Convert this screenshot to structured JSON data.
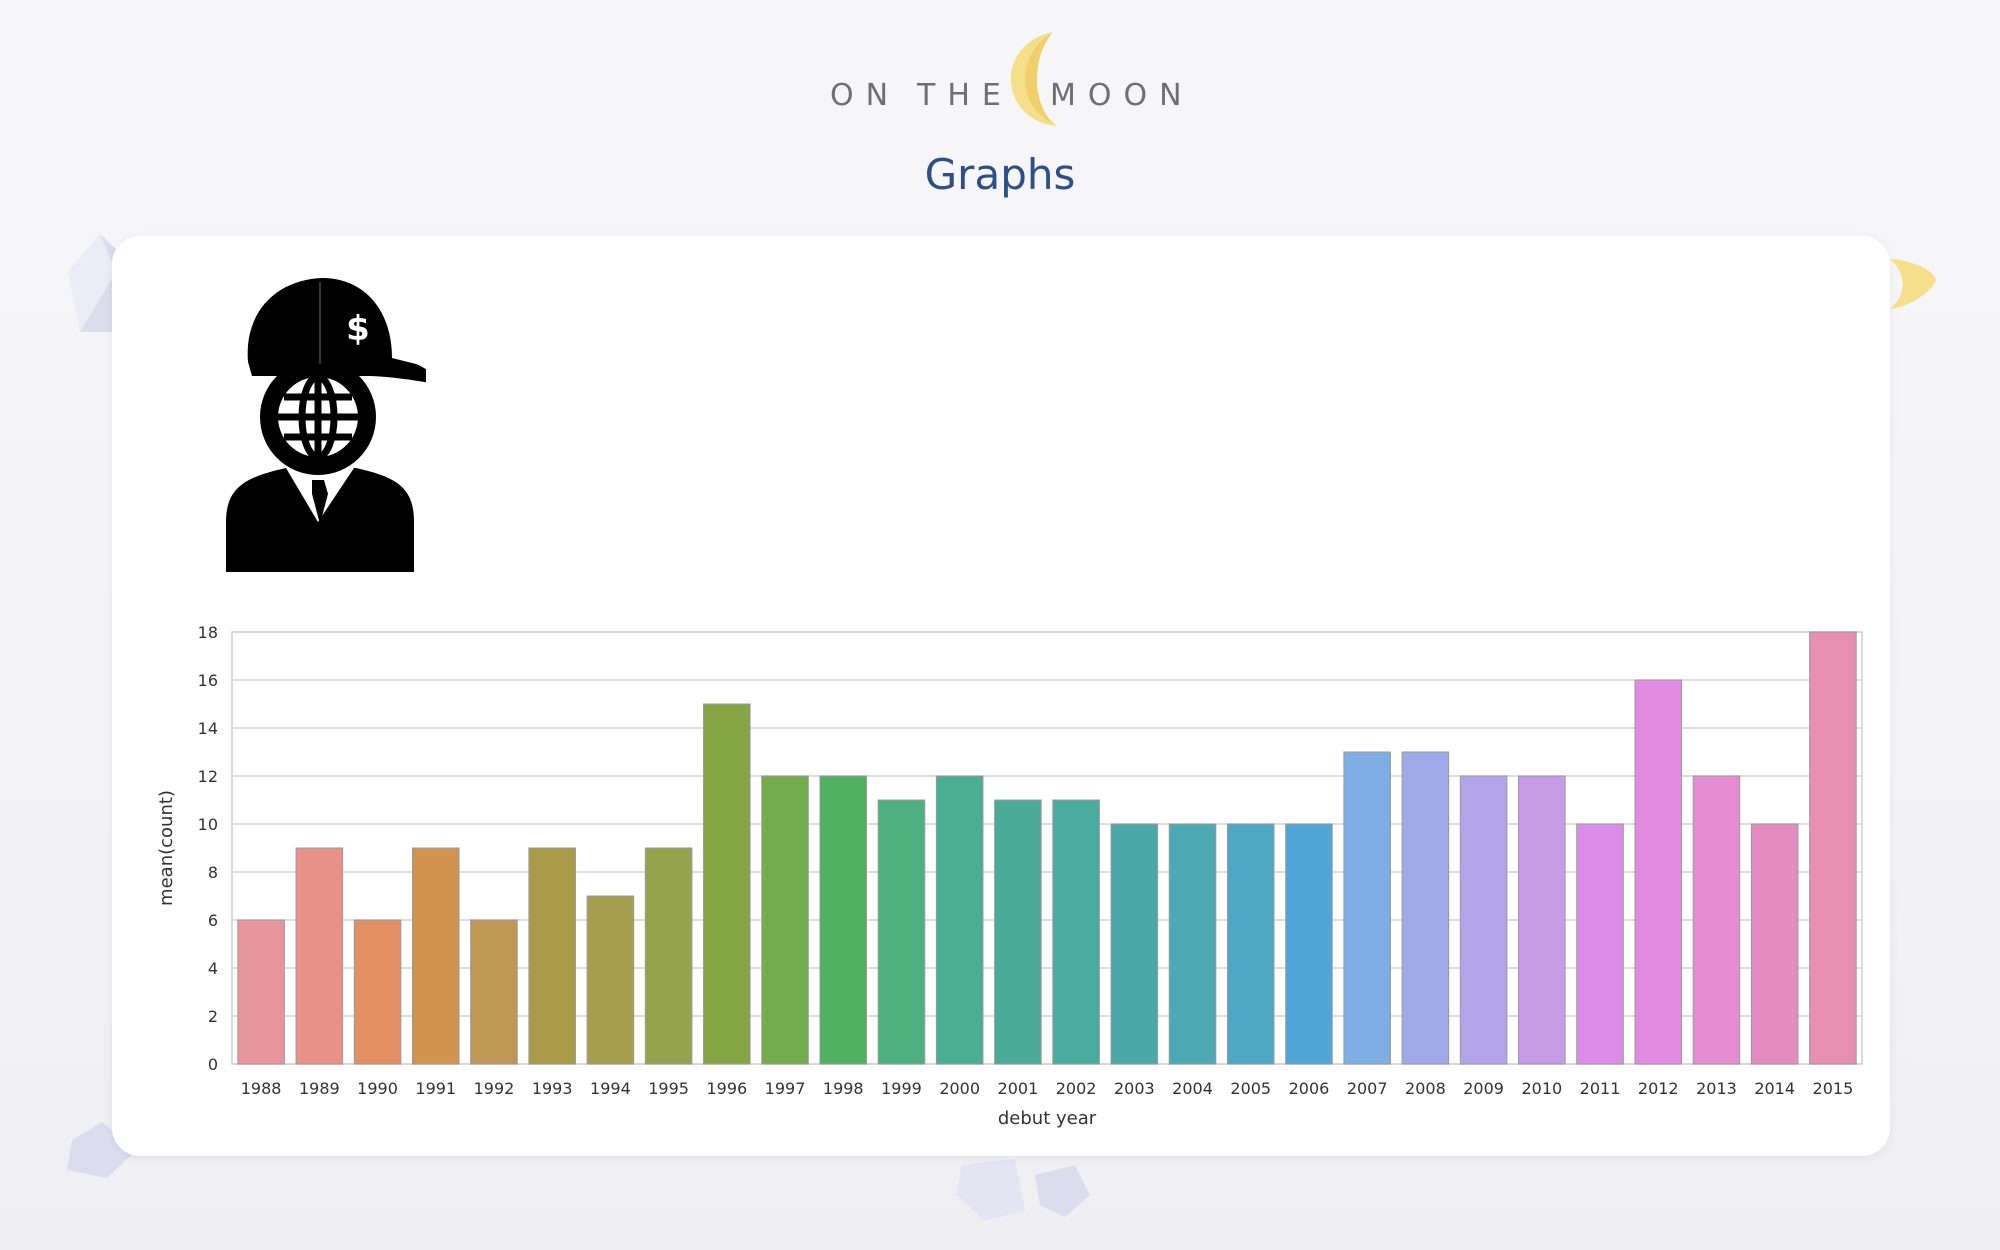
{
  "brand": {
    "word1": "ON",
    "word2": "THE",
    "word3": "MOON",
    "moon_icon": "crescent-moon-icon",
    "moon_color": "#f5df8a"
  },
  "page": {
    "title": "Graphs",
    "title_color": "#2d4f86"
  },
  "avatar": {
    "icon": "businessman-globe-head-cap-icon",
    "cap_symbol": "$"
  },
  "chart_data": {
    "type": "bar",
    "xlabel": "debut year",
    "ylabel": "mean(count)",
    "ylim": [
      0,
      18
    ],
    "yticks": [
      0,
      2,
      4,
      6,
      8,
      10,
      12,
      14,
      16,
      18
    ],
    "grid": true,
    "categories": [
      "1988",
      "1989",
      "1990",
      "1991",
      "1992",
      "1993",
      "1994",
      "1995",
      "1996",
      "1997",
      "1998",
      "1999",
      "2000",
      "2001",
      "2002",
      "2003",
      "2004",
      "2005",
      "2006",
      "2007",
      "2008",
      "2009",
      "2010",
      "2011",
      "2012",
      "2013",
      "2014",
      "2015"
    ],
    "values": [
      6,
      9,
      6,
      9,
      6,
      9,
      7,
      9,
      15,
      12,
      12,
      11,
      12,
      11,
      11,
      10,
      10,
      10,
      10,
      13,
      13,
      12,
      12,
      10,
      16,
      12,
      10,
      18
    ],
    "colors": [
      "#e8949c",
      "#e8928a",
      "#e38f64",
      "#d0944f",
      "#be9752",
      "#a99b47",
      "#a59f4d",
      "#94a34c",
      "#85a545",
      "#73ac4b",
      "#4fb05f",
      "#4eb07e",
      "#4aaf92",
      "#4aab98",
      "#4aab9f",
      "#4aa8a8",
      "#4aa9b3",
      "#4da8c4",
      "#4fa6d6",
      "#7eaee4",
      "#9fa9e8",
      "#b2a4e8",
      "#c89be6",
      "#d98ce8",
      "#e28ae0",
      "#e48ccf",
      "#e48bbf",
      "#e78fb1"
    ]
  }
}
